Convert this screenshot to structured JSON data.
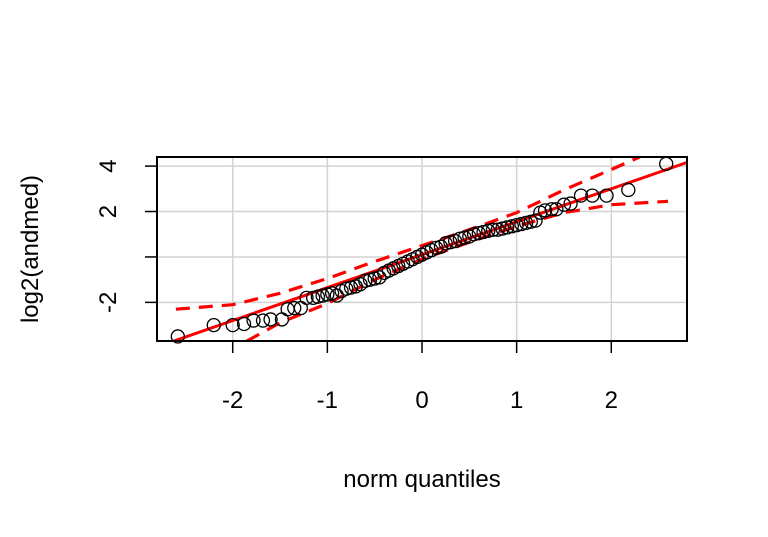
{
  "chart_data": {
    "type": "scatter",
    "title": "",
    "xlabel": "norm quantiles",
    "ylabel": "log2(andmed)",
    "xlim": [
      -2.8,
      2.8
    ],
    "ylim": [
      -3.7,
      4.4
    ],
    "xticks": [
      -2,
      -1,
      0,
      1,
      2
    ],
    "xtick_labels": [
      "-2",
      "-1",
      "0",
      "1",
      "2"
    ],
    "yticks": [
      -2,
      0,
      2,
      4
    ],
    "ytick_labels": [
      "-2",
      "",
      "2",
      "4"
    ],
    "grid": true,
    "colors": {
      "points": "#000000",
      "fit_line": "#ff0000",
      "envelope": "#ff0000",
      "grid": "#d3d3d3"
    },
    "fit_line": {
      "intercept": 0.1,
      "slope": 1.45
    },
    "envelope": {
      "upper": [
        [
          -2.6,
          -2.3
        ],
        [
          -2.0,
          -2.1
        ],
        [
          -1.5,
          -1.6
        ],
        [
          -1.0,
          -0.95
        ],
        [
          -0.5,
          -0.2
        ],
        [
          0,
          0.5
        ],
        [
          0.5,
          1.2
        ],
        [
          1.0,
          1.95
        ],
        [
          1.5,
          2.95
        ],
        [
          2.0,
          3.85
        ],
        [
          2.3,
          4.4
        ]
      ],
      "lower": [
        [
          -1.85,
          -3.7
        ],
        [
          -1.5,
          -2.9
        ],
        [
          -1.0,
          -2.05
        ],
        [
          -0.5,
          -1.0
        ],
        [
          0,
          -0.1
        ],
        [
          0.5,
          0.65
        ],
        [
          1.0,
          1.35
        ],
        [
          1.5,
          1.95
        ],
        [
          2.0,
          2.3
        ],
        [
          2.6,
          2.45
        ]
      ]
    },
    "points": [
      [
        -2.58,
        -3.5
      ],
      [
        -2.2,
        -3.0
      ],
      [
        -2.0,
        -3.0
      ],
      [
        -1.88,
        -2.95
      ],
      [
        -1.78,
        -2.8
      ],
      [
        -1.68,
        -2.8
      ],
      [
        -1.6,
        -2.75
      ],
      [
        -1.48,
        -2.75
      ],
      [
        -1.42,
        -2.3
      ],
      [
        -1.35,
        -2.25
      ],
      [
        -1.28,
        -2.25
      ],
      [
        -1.22,
        -1.8
      ],
      [
        -1.15,
        -1.8
      ],
      [
        -1.1,
        -1.75
      ],
      [
        -1.05,
        -1.7
      ],
      [
        -1.0,
        -1.65
      ],
      [
        -0.95,
        -1.6
      ],
      [
        -0.9,
        -1.7
      ],
      [
        -0.85,
        -1.5
      ],
      [
        -0.8,
        -1.4
      ],
      [
        -0.75,
        -1.35
      ],
      [
        -0.7,
        -1.3
      ],
      [
        -0.65,
        -1.2
      ],
      [
        -0.6,
        -1.05
      ],
      [
        -0.55,
        -1.0
      ],
      [
        -0.5,
        -0.95
      ],
      [
        -0.45,
        -0.9
      ],
      [
        -0.4,
        -0.7
      ],
      [
        -0.35,
        -0.6
      ],
      [
        -0.3,
        -0.5
      ],
      [
        -0.25,
        -0.4
      ],
      [
        -0.2,
        -0.3
      ],
      [
        -0.15,
        -0.2
      ],
      [
        -0.1,
        -0.1
      ],
      [
        -0.05,
        0.0
      ],
      [
        0.0,
        0.1
      ],
      [
        0.05,
        0.2
      ],
      [
        0.1,
        0.3
      ],
      [
        0.15,
        0.4
      ],
      [
        0.2,
        0.45
      ],
      [
        0.25,
        0.6
      ],
      [
        0.3,
        0.65
      ],
      [
        0.35,
        0.7
      ],
      [
        0.4,
        0.8
      ],
      [
        0.45,
        0.85
      ],
      [
        0.5,
        0.9
      ],
      [
        0.55,
        1.0
      ],
      [
        0.6,
        1.05
      ],
      [
        0.65,
        1.1
      ],
      [
        0.7,
        1.15
      ],
      [
        0.75,
        1.2
      ],
      [
        0.8,
        1.2
      ],
      [
        0.85,
        1.25
      ],
      [
        0.9,
        1.3
      ],
      [
        0.95,
        1.35
      ],
      [
        1.0,
        1.4
      ],
      [
        1.05,
        1.45
      ],
      [
        1.1,
        1.5
      ],
      [
        1.15,
        1.55
      ],
      [
        1.2,
        1.6
      ],
      [
        1.25,
        1.95
      ],
      [
        1.3,
        2.05
      ],
      [
        1.37,
        2.1
      ],
      [
        1.42,
        2.1
      ],
      [
        1.5,
        2.3
      ],
      [
        1.57,
        2.35
      ],
      [
        1.68,
        2.7
      ],
      [
        1.8,
        2.7
      ],
      [
        1.95,
        2.7
      ],
      [
        2.18,
        2.95
      ],
      [
        2.58,
        4.1
      ]
    ]
  }
}
